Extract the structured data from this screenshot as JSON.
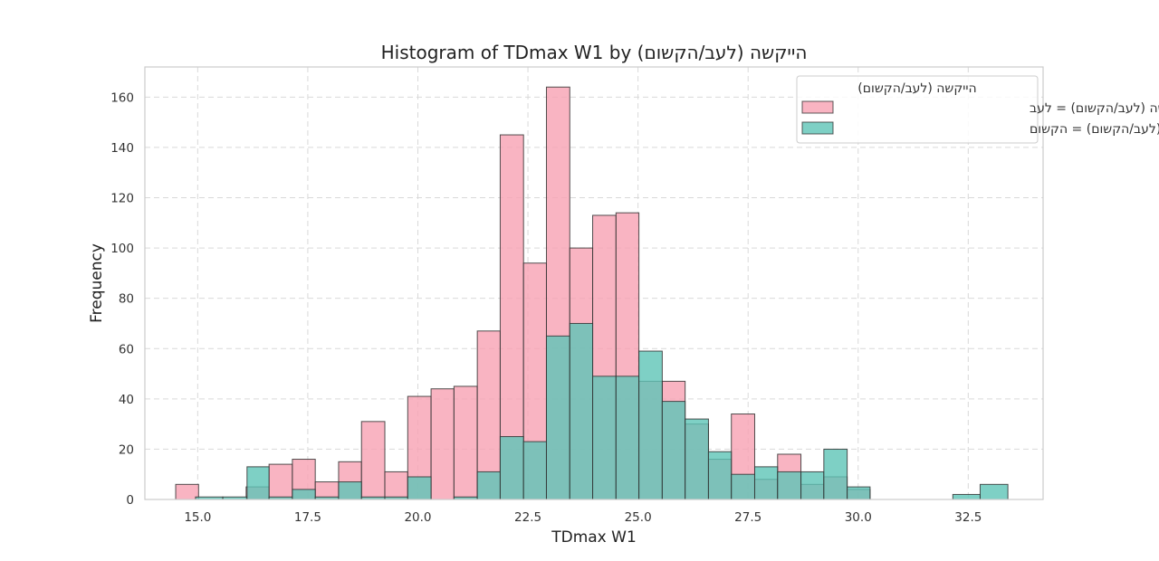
{
  "chart_data": {
    "type": "histogram",
    "title": "Histogram of TDmax W1 by הייקשה (לעב/הקשום)",
    "xlabel": "TDmax W1",
    "ylabel": "Frequency",
    "xlim": [
      13.8,
      34.2
    ],
    "ylim": [
      0,
      172
    ],
    "xticks": [
      15.0,
      17.5,
      20.0,
      22.5,
      25.0,
      27.5,
      30.0,
      32.5
    ],
    "xtick_labels": [
      "15.0",
      "17.5",
      "20.0",
      "22.5",
      "25.0",
      "27.5",
      "30.0",
      "32.5"
    ],
    "yticks": [
      0,
      20,
      40,
      60,
      80,
      100,
      120,
      140,
      160
    ],
    "ytick_labels": [
      "0",
      "20",
      "40",
      "60",
      "80",
      "100",
      "120",
      "140",
      "160"
    ],
    "grid": true,
    "legend": {
      "title": "הייקשה (לעב/הקשום)",
      "placement": "top-right"
    },
    "series": [
      {
        "name": "הייקשה (לעב/הקשום) = לעב",
        "color": "#f7a1b3",
        "bins": [
          {
            "x0": 14.5,
            "x1": 15.02,
            "count": 6
          },
          {
            "x0": 16.1,
            "x1": 16.62,
            "count": 5
          },
          {
            "x0": 16.62,
            "x1": 17.15,
            "count": 14
          },
          {
            "x0": 17.15,
            "x1": 17.67,
            "count": 16
          },
          {
            "x0": 17.67,
            "x1": 18.2,
            "count": 7
          },
          {
            "x0": 18.2,
            "x1": 18.72,
            "count": 15
          },
          {
            "x0": 18.72,
            "x1": 19.25,
            "count": 31
          },
          {
            "x0": 19.25,
            "x1": 19.77,
            "count": 11
          },
          {
            "x0": 19.77,
            "x1": 20.3,
            "count": 41
          },
          {
            "x0": 20.3,
            "x1": 20.82,
            "count": 44
          },
          {
            "x0": 20.82,
            "x1": 21.35,
            "count": 45
          },
          {
            "x0": 21.35,
            "x1": 21.87,
            "count": 67
          },
          {
            "x0": 21.87,
            "x1": 22.4,
            "count": 145
          },
          {
            "x0": 22.4,
            "x1": 22.92,
            "count": 94
          },
          {
            "x0": 22.92,
            "x1": 23.45,
            "count": 164
          },
          {
            "x0": 23.45,
            "x1": 23.97,
            "count": 100
          },
          {
            "x0": 23.97,
            "x1": 24.5,
            "count": 113
          },
          {
            "x0": 24.5,
            "x1": 25.02,
            "count": 114
          },
          {
            "x0": 25.02,
            "x1": 25.55,
            "count": 47
          },
          {
            "x0": 25.55,
            "x1": 26.07,
            "count": 47
          },
          {
            "x0": 26.07,
            "x1": 26.6,
            "count": 30
          },
          {
            "x0": 26.6,
            "x1": 27.12,
            "count": 16
          },
          {
            "x0": 27.12,
            "x1": 27.65,
            "count": 34
          },
          {
            "x0": 27.65,
            "x1": 28.17,
            "count": 8
          },
          {
            "x0": 28.17,
            "x1": 28.7,
            "count": 18
          },
          {
            "x0": 28.7,
            "x1": 29.22,
            "count": 6
          },
          {
            "x0": 29.22,
            "x1": 29.75,
            "count": 9
          },
          {
            "x0": 29.75,
            "x1": 30.27,
            "count": 4
          }
        ]
      },
      {
        "name": "הייקשה (לעב/הקשום) = הקשום",
        "color": "#5ec4b6",
        "bins": [
          {
            "x0": 14.95,
            "x1": 15.57,
            "count": 1
          },
          {
            "x0": 15.57,
            "x1": 16.12,
            "count": 1
          },
          {
            "x0": 16.12,
            "x1": 16.62,
            "count": 13
          },
          {
            "x0": 16.62,
            "x1": 17.15,
            "count": 1
          },
          {
            "x0": 17.15,
            "x1": 17.67,
            "count": 4
          },
          {
            "x0": 17.67,
            "x1": 18.2,
            "count": 1
          },
          {
            "x0": 18.2,
            "x1": 18.72,
            "count": 7
          },
          {
            "x0": 18.72,
            "x1": 19.25,
            "count": 1
          },
          {
            "x0": 19.25,
            "x1": 19.77,
            "count": 1
          },
          {
            "x0": 19.77,
            "x1": 20.3,
            "count": 9
          },
          {
            "x0": 20.82,
            "x1": 21.35,
            "count": 1
          },
          {
            "x0": 21.35,
            "x1": 21.87,
            "count": 11
          },
          {
            "x0": 21.87,
            "x1": 22.4,
            "count": 25
          },
          {
            "x0": 22.4,
            "x1": 22.92,
            "count": 23
          },
          {
            "x0": 22.92,
            "x1": 23.45,
            "count": 65
          },
          {
            "x0": 23.45,
            "x1": 23.97,
            "count": 70
          },
          {
            "x0": 23.97,
            "x1": 24.5,
            "count": 49
          },
          {
            "x0": 24.5,
            "x1": 25.02,
            "count": 49
          },
          {
            "x0": 25.02,
            "x1": 25.55,
            "count": 59
          },
          {
            "x0": 25.55,
            "x1": 26.07,
            "count": 39
          },
          {
            "x0": 26.07,
            "x1": 26.6,
            "count": 32
          },
          {
            "x0": 26.6,
            "x1": 27.12,
            "count": 19
          },
          {
            "x0": 27.12,
            "x1": 27.65,
            "count": 10
          },
          {
            "x0": 27.65,
            "x1": 28.17,
            "count": 13
          },
          {
            "x0": 28.17,
            "x1": 28.7,
            "count": 11
          },
          {
            "x0": 28.7,
            "x1": 29.22,
            "count": 11
          },
          {
            "x0": 29.22,
            "x1": 29.75,
            "count": 20
          },
          {
            "x0": 29.75,
            "x1": 30.27,
            "count": 5
          },
          {
            "x0": 32.15,
            "x1": 32.77,
            "count": 2
          },
          {
            "x0": 32.77,
            "x1": 33.4,
            "count": 6
          }
        ]
      }
    ]
  }
}
